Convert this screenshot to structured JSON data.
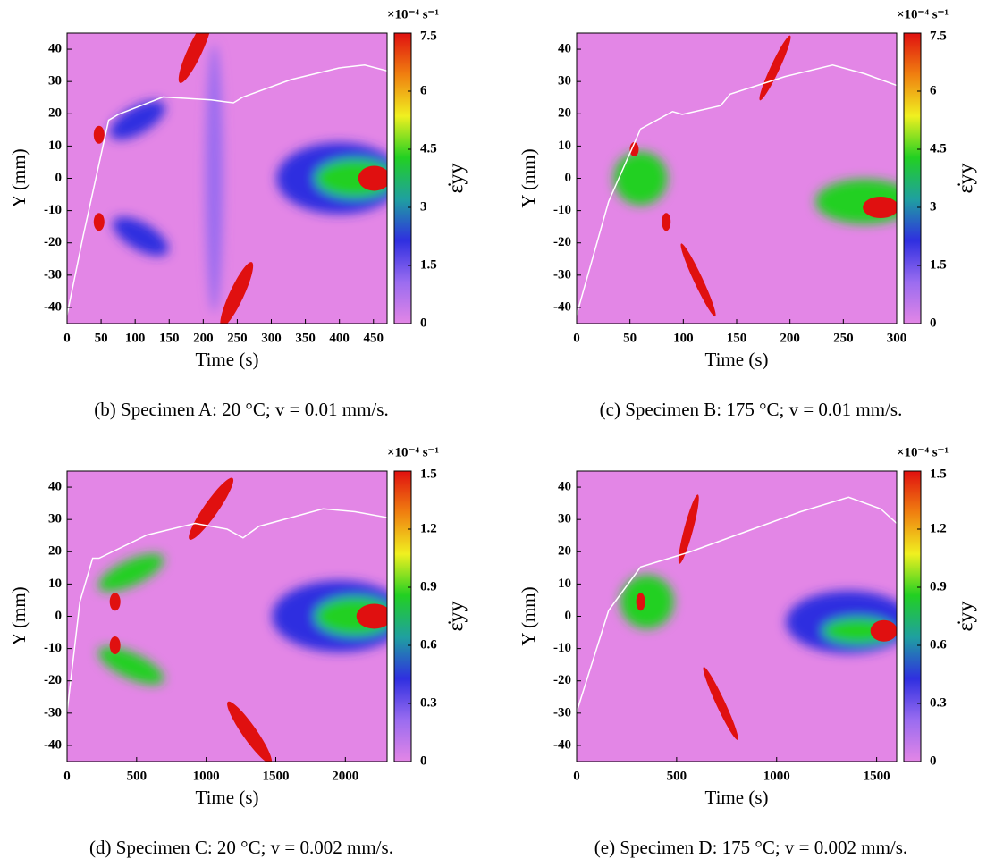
{
  "chart_data": [
    {
      "type": "heatmap",
      "caption": "(b) Specimen A: 20 °C; v = 0.01 mm/s.",
      "xlabel": "Time (s)",
      "ylabel": "Y (mm)",
      "xlim": [
        0,
        470
      ],
      "xticks": [
        0,
        50,
        100,
        150,
        200,
        250,
        300,
        350,
        400,
        450
      ],
      "ylim": [
        -45,
        45
      ],
      "yticks": [
        -40,
        -30,
        -20,
        -10,
        0,
        10,
        20,
        30,
        40
      ],
      "colorbar_label": "ε̇yy",
      "colorbar_unit": "×10⁻⁴ s⁻¹",
      "clim": [
        0,
        7.5
      ],
      "cticks": [
        0,
        1.5,
        3,
        4.5,
        6,
        7.5
      ],
      "colormap": [
        "#e386e6",
        "#9a6cf0",
        "#2f2fe0",
        "#1fa0a0",
        "#22d022",
        "#f0f020",
        "#f08010",
        "#e01010"
      ]
    },
    {
      "type": "heatmap",
      "caption": "(c) Specimen B: 175 °C; v = 0.01 mm/s.",
      "xlabel": "Time (s)",
      "ylabel": "Y (mm)",
      "xlim": [
        0,
        300
      ],
      "xticks": [
        0,
        50,
        100,
        150,
        200,
        250,
        300
      ],
      "ylim": [
        -45,
        45
      ],
      "yticks": [
        -40,
        -30,
        -20,
        -10,
        0,
        10,
        20,
        30,
        40
      ],
      "colorbar_label": "ε̇yy",
      "colorbar_unit": "×10⁻⁴ s⁻¹",
      "clim": [
        0,
        7.5
      ],
      "cticks": [
        0,
        1.5,
        3,
        4.5,
        6,
        7.5
      ],
      "colormap": [
        "#e386e6",
        "#9a6cf0",
        "#2f2fe0",
        "#1fa0a0",
        "#22d022",
        "#f0f020",
        "#f08010",
        "#e01010"
      ]
    },
    {
      "type": "heatmap",
      "caption": "(d) Specimen C: 20 °C; v = 0.002 mm/s.",
      "xlabel": "Time (s)",
      "ylabel": "Y (mm)",
      "xlim": [
        0,
        2300
      ],
      "xticks": [
        0,
        500,
        1000,
        1500,
        2000
      ],
      "ylim": [
        -45,
        45
      ],
      "yticks": [
        -40,
        -30,
        -20,
        -10,
        0,
        10,
        20,
        30,
        40
      ],
      "colorbar_label": "ε̇yy",
      "colorbar_unit": "×10⁻⁴ s⁻¹",
      "clim": [
        0,
        1.5
      ],
      "cticks": [
        0,
        0.3,
        0.6,
        0.9,
        1.2,
        1.5
      ],
      "colormap": [
        "#e386e6",
        "#9a6cf0",
        "#2f2fe0",
        "#1fa0a0",
        "#22d022",
        "#f0f020",
        "#f08010",
        "#e01010"
      ]
    },
    {
      "type": "heatmap",
      "caption": "(e) Specimen D: 175 °C; v = 0.002 mm/s.",
      "xlabel": "Time (s)",
      "ylabel": "Y (mm)",
      "xlim": [
        0,
        1600
      ],
      "xticks": [
        0,
        500,
        1000,
        1500
      ],
      "ylim": [
        -45,
        45
      ],
      "yticks": [
        -40,
        -30,
        -20,
        -10,
        0,
        10,
        20,
        30,
        40
      ],
      "colorbar_label": "ε̇yy",
      "colorbar_unit": "×10⁻⁴ s⁻¹",
      "clim": [
        0,
        1.5
      ],
      "cticks": [
        0,
        0.3,
        0.6,
        0.9,
        1.2,
        1.5
      ],
      "colormap": [
        "#e386e6",
        "#9a6cf0",
        "#2f2fe0",
        "#1fa0a0",
        "#22d022",
        "#f0f020",
        "#f08010",
        "#e01010"
      ]
    }
  ]
}
